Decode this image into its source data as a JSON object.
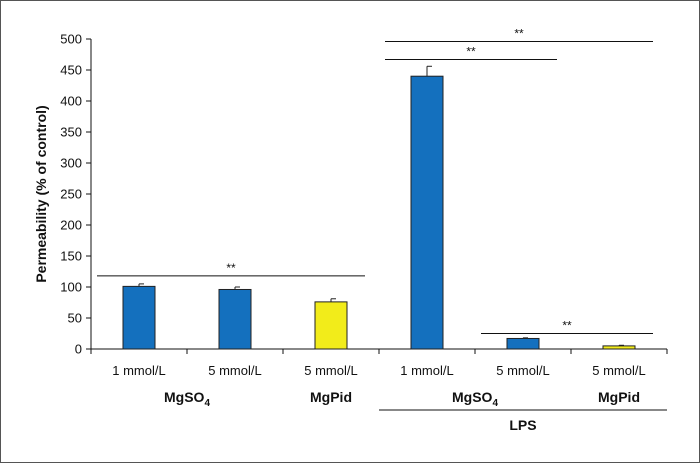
{
  "chart_data": {
    "type": "bar",
    "title": "",
    "ylabel": "Permeability (% of control)",
    "xlabel": "",
    "ylim": [
      0,
      500
    ],
    "yticks": [
      0,
      50,
      100,
      150,
      200,
      250,
      300,
      350,
      400,
      450,
      500
    ],
    "grid": false,
    "legend": "none",
    "categories": [
      "1 mmol/L",
      "5 mmol/L",
      "5 mmol/L",
      "1 mmol/L",
      "5 mmol/L",
      "5 mmol/L"
    ],
    "values": [
      101,
      96,
      76,
      440,
      17,
      5
    ],
    "errors": [
      4,
      4,
      5,
      16,
      1,
      1
    ],
    "bar_colors": [
      "#1470BE",
      "#1470BE",
      "#F2EC1A",
      "#1470BE",
      "#1470BE",
      "#F2EC1A"
    ],
    "groups": [
      {
        "main": "MgSO",
        "sub": "4",
        "span": [
          0,
          1
        ]
      },
      {
        "main": "MgPid",
        "sub": "",
        "span": [
          2,
          2
        ]
      },
      {
        "main": "MgSO",
        "sub": "4",
        "span": [
          3,
          4
        ]
      },
      {
        "main": "MgPid",
        "sub": "",
        "span": [
          5,
          5
        ]
      }
    ],
    "outer_group": {
      "label": "LPS",
      "span": [
        3,
        5
      ]
    },
    "significance": [
      {
        "label": "**",
        "from": 0,
        "to": 2,
        "y": 118
      },
      {
        "label": "**",
        "from": 3,
        "to": 5,
        "y": 496
      },
      {
        "label": "**",
        "from": 3,
        "to": 4,
        "y": 467
      },
      {
        "label": "**",
        "from": 4,
        "to": 5,
        "y": 25
      }
    ]
  }
}
